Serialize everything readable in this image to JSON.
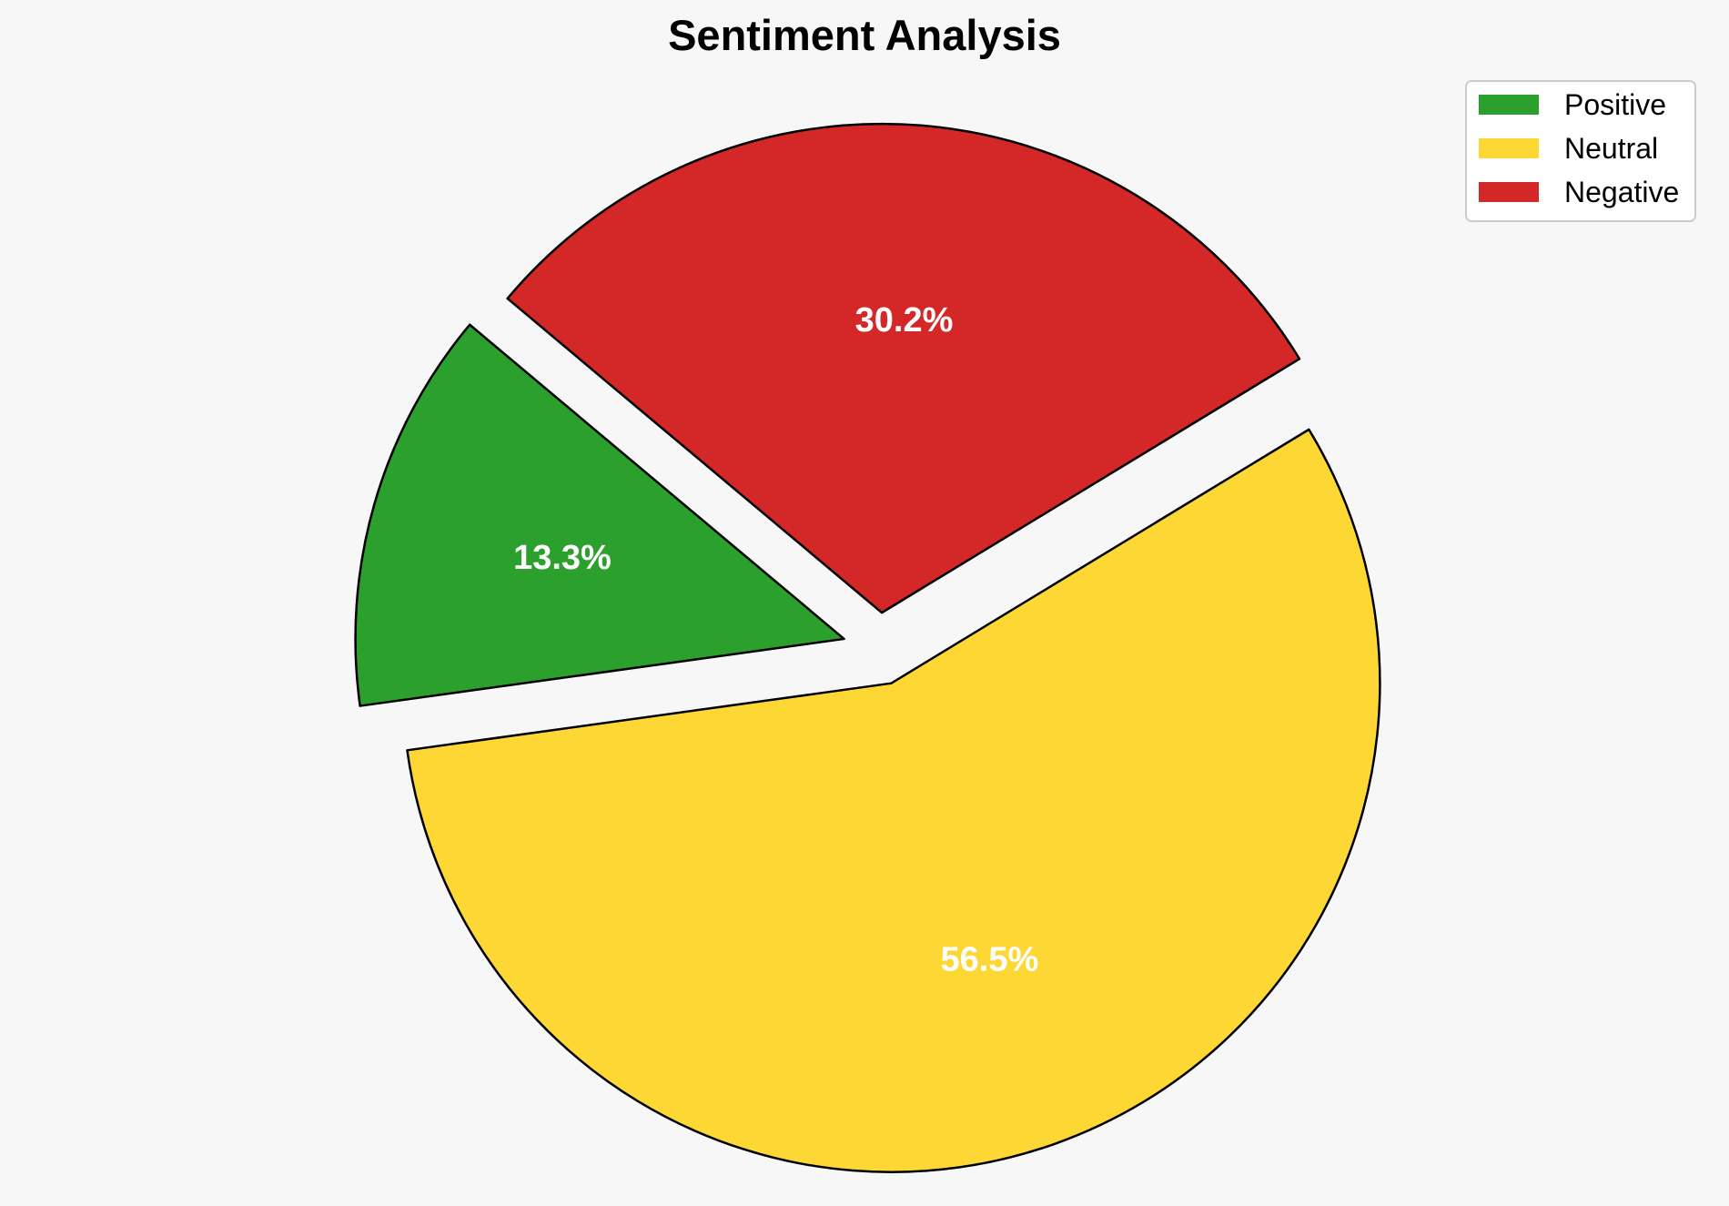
{
  "chart_data": {
    "type": "pie",
    "title": "Sentiment Analysis",
    "start_angle_deg": 140,
    "direction": "counterclockwise",
    "exploded": true,
    "legend_position": "top-right",
    "slices": [
      {
        "name": "Positive",
        "value": 13.3,
        "label": "13.3%",
        "color": "#2ca02c"
      },
      {
        "name": "Neutral",
        "value": 56.5,
        "label": "56.5%",
        "color": "#fdd835"
      },
      {
        "name": "Negative",
        "value": 30.2,
        "label": "30.2%",
        "color": "#d32728"
      }
    ]
  }
}
